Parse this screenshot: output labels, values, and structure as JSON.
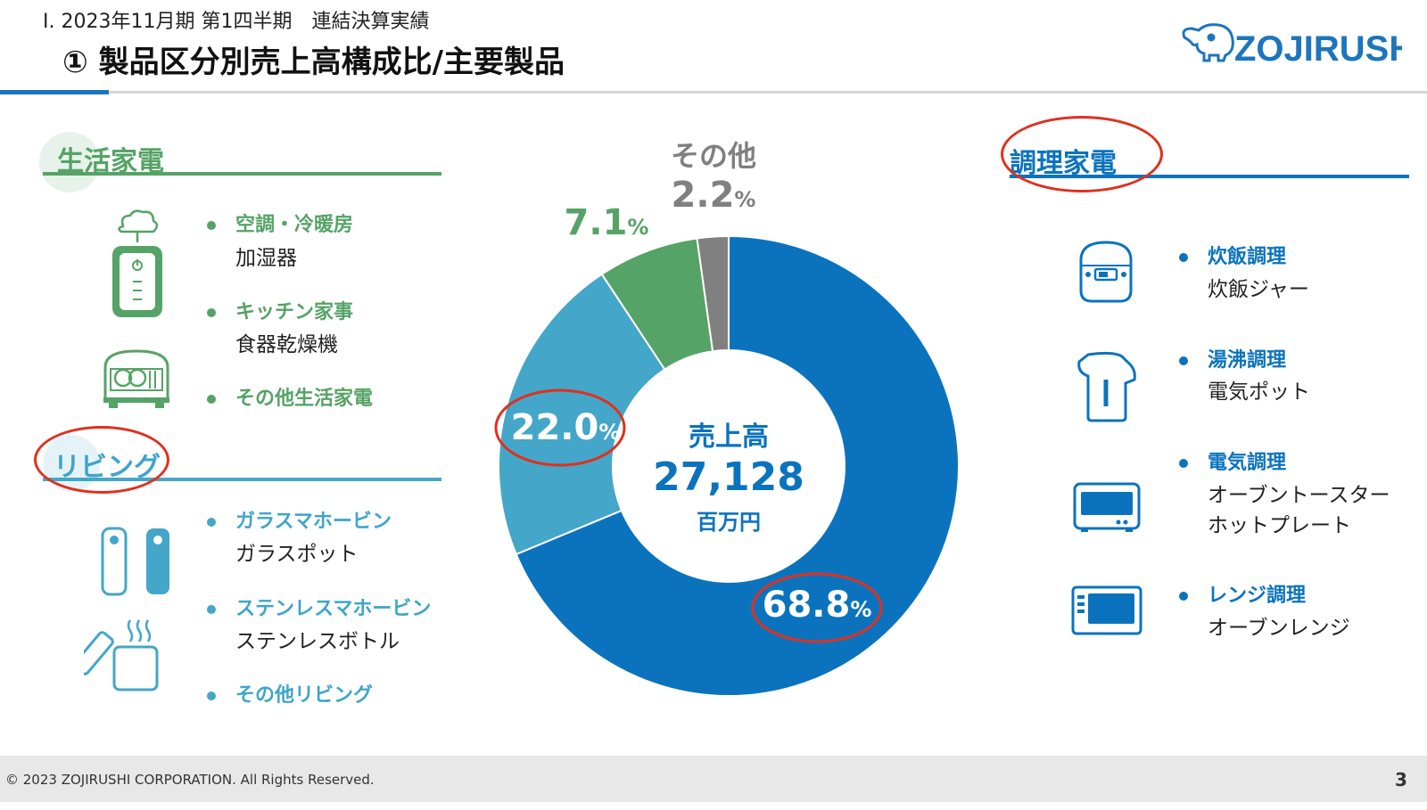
{
  "header": {
    "subtitle": "Ⅰ. 2023年11月期 第1四半期　連結決算実績",
    "title": "① 製品区分別売上高構成比/主要製品"
  },
  "logo": {
    "text": "ZOJIRUSHI",
    "color": "#1d75bd"
  },
  "sections": {
    "living_appliances": {
      "title": "生活家電",
      "items": [
        {
          "category": "空調・冷暖房",
          "products": [
            "加湿器"
          ]
        },
        {
          "category": "キッチン家事",
          "products": [
            "食器乾燥機"
          ]
        },
        {
          "category": "その他生活家電",
          "products": []
        }
      ]
    },
    "living": {
      "title": "リビング",
      "items": [
        {
          "category": "ガラスマホービン",
          "products": [
            "ガラスポット"
          ]
        },
        {
          "category": "ステンレスマホービン",
          "products": [
            "ステンレスボトル"
          ]
        },
        {
          "category": "その他リビング",
          "products": []
        }
      ]
    },
    "cooking": {
      "title": "調理家電",
      "items": [
        {
          "category": "炊飯調理",
          "products": [
            "炊飯ジャー"
          ]
        },
        {
          "category": "湯沸調理",
          "products": [
            "電気ポット"
          ]
        },
        {
          "category": "電気調理",
          "products": [
            "オーブントースター",
            "ホットプレート"
          ]
        },
        {
          "category": "レンジ調理",
          "products": [
            "オーブンレンジ"
          ]
        }
      ]
    }
  },
  "chart_data": {
    "type": "pie",
    "subtype": "donut",
    "center": {
      "label": "売上高",
      "value": "27,128",
      "unit": "百万円"
    },
    "slices": [
      {
        "value": 68.8,
        "label": "68.8",
        "unit": "%",
        "color": "#0b73be",
        "label_color": "#ffffff",
        "circled": true
      },
      {
        "value": 22.0,
        "label": "22.0",
        "unit": "%",
        "color": "#44a6c8",
        "label_color": "#ffffff",
        "circled": true
      },
      {
        "value": 7.1,
        "label": "7.1",
        "unit": "%",
        "color": "#55a366",
        "label_color": "#55a366",
        "circled": false
      },
      {
        "value": 2.2,
        "label": "2.2",
        "unit": "%",
        "color": "#808080",
        "label_color": "#808080",
        "circled": false,
        "name": "その他"
      }
    ]
  },
  "footer": {
    "copyright": "© 2023 ZOJIRUSHI CORPORATION. All Rights Reserved.",
    "page": "3"
  }
}
